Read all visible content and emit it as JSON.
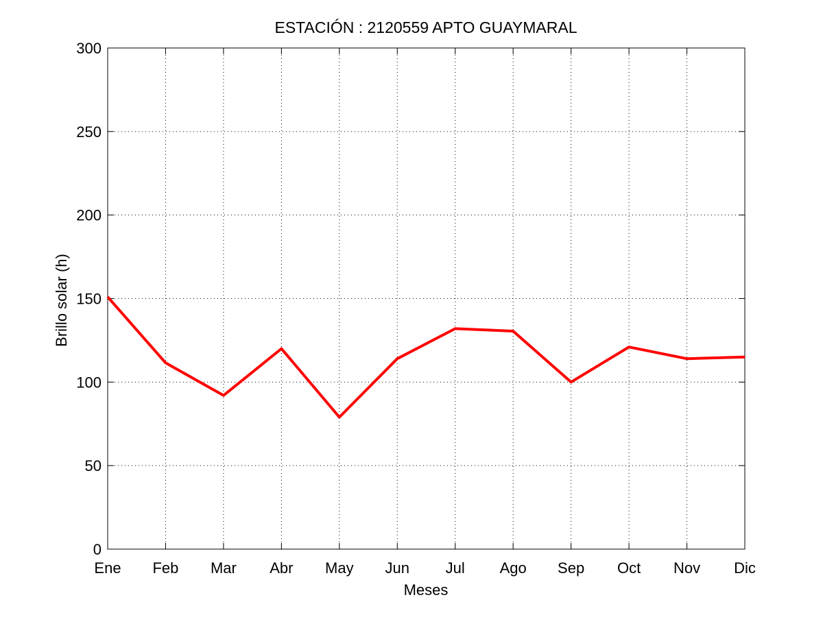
{
  "chart_data": {
    "type": "line",
    "title": "ESTACIÓN :  2120559  APTO GUAYMARAL",
    "xlabel": "Meses",
    "ylabel": "Brillo solar (h)",
    "categories": [
      "Ene",
      "Feb",
      "Mar",
      "Abr",
      "May",
      "Jun",
      "Jul",
      "Ago",
      "Sep",
      "Oct",
      "Nov",
      "Dic"
    ],
    "series": [
      {
        "values": [
          151,
          111.5,
          92,
          120,
          79,
          114,
          132,
          130.5,
          100,
          121,
          114,
          115
        ],
        "color": "#ff0000"
      }
    ],
    "ylim": [
      0,
      300
    ],
    "yticks": [
      0,
      50,
      100,
      150,
      200,
      250,
      300
    ],
    "grid": true,
    "grid_style": "dotted",
    "legend": false
  }
}
